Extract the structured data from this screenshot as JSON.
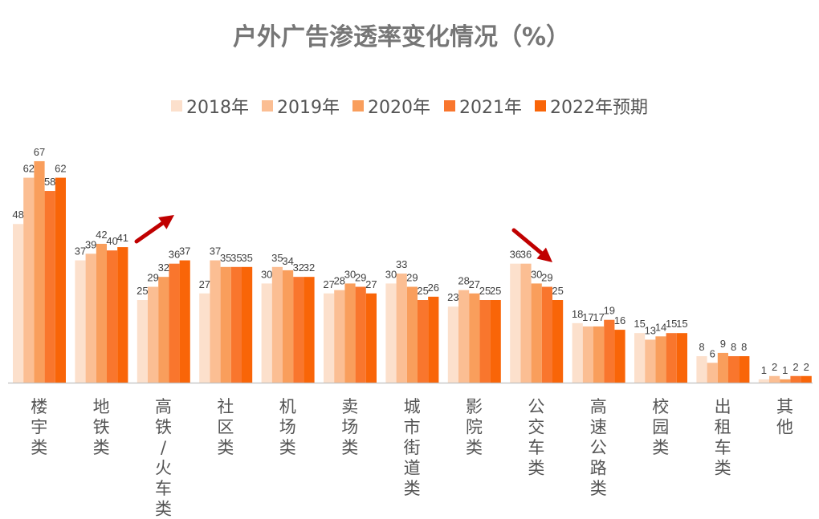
{
  "colors": {
    "series": [
      "#FCE0CC",
      "#FBBE93",
      "#F99E5C",
      "#F9762D",
      "#F96508"
    ],
    "arrow": "#C00000",
    "axis": "#BFBFBF"
  },
  "chart_data": {
    "type": "bar",
    "title": "户外广告渗透率变化情况（%）",
    "xlabel": "",
    "ylabel": "",
    "ylim": [
      0,
      67
    ],
    "grid": false,
    "legend": "top-center",
    "categories": [
      "楼宇类",
      "地铁类",
      "高铁/火车类",
      "社区类",
      "机场类",
      "卖场类",
      "城市街道类",
      "影院类",
      "公交车类",
      "高速公路类",
      "校园类",
      "出租车类",
      "其他"
    ],
    "series": [
      {
        "name": "2018年",
        "values": [
          48,
          37,
          25,
          27,
          30,
          27,
          30,
          23,
          36,
          18,
          15,
          8,
          1
        ]
      },
      {
        "name": "2019年",
        "values": [
          62,
          39,
          29,
          37,
          35,
          28,
          33,
          28,
          36,
          17,
          13,
          6,
          2
        ]
      },
      {
        "name": "2020年",
        "values": [
          67,
          42,
          32,
          35,
          34,
          30,
          29,
          27,
          30,
          17,
          14,
          9,
          1
        ]
      },
      {
        "name": "2021年",
        "values": [
          58,
          40,
          36,
          35,
          32,
          29,
          25,
          25,
          29,
          19,
          15,
          8,
          2
        ]
      },
      {
        "name": "2022年预期",
        "values": [
          62,
          41,
          37,
          35,
          32,
          27,
          26,
          25,
          25,
          16,
          15,
          8,
          2
        ]
      }
    ],
    "annotations": [
      {
        "type": "arrow",
        "direction": "up",
        "near_category": "高铁/火车类"
      },
      {
        "type": "arrow",
        "direction": "down",
        "near_category": "公交车类"
      }
    ]
  }
}
